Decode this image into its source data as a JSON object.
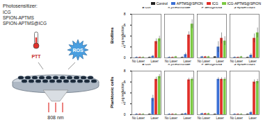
{
  "diagram": {
    "photosensitizer": {
      "title": "Photosensitizer:",
      "items": [
        "ICG",
        "SPION-APTMS",
        "SPION-APTMS@ICG"
      ]
    },
    "laser": "808 nm",
    "effects": [
      "PTT",
      "ROS"
    ]
  },
  "chart_data": [
    {
      "type": "bar",
      "title": "Biofilms",
      "y_label": "Log reduction",
      "categories": [
        "E coli",
        "K pneumoniae",
        "P aeruginosa",
        "S epidermidis"
      ],
      "groups": [
        "No Laser",
        "Laser"
      ],
      "ylim": [
        0,
        8
      ],
      "yticks": [
        0,
        2,
        4,
        6,
        8
      ],
      "legend": "top-right",
      "series": [
        {
          "name": "Control",
          "color": "#222222",
          "values": [
            [
              0,
              0.1
            ],
            [
              0,
              0.1
            ],
            [
              0,
              0.2
            ],
            [
              0,
              0.1
            ]
          ],
          "errors": [
            [
              0,
              0.1
            ],
            [
              0,
              0.1
            ],
            [
              0,
              0.1
            ],
            [
              0,
              0.1
            ]
          ]
        },
        {
          "name": "APTMS@SPION",
          "color": "#3b6fd4",
          "values": [
            [
              0.1,
              0.3
            ],
            [
              0.1,
              0.6
            ],
            [
              0.2,
              2.0
            ],
            [
              0.1,
              0.5
            ]
          ],
          "errors": [
            [
              0.1,
              0.2
            ],
            [
              0.1,
              0.3
            ],
            [
              0.1,
              1.0
            ],
            [
              0.1,
              0.3
            ]
          ]
        },
        {
          "name": "ICG",
          "color": "#e0302a",
          "values": [
            [
              0.1,
              3.0
            ],
            [
              0.1,
              4.2
            ],
            [
              0.2,
              3.6
            ],
            [
              0.1,
              3.6
            ]
          ],
          "errors": [
            [
              0.1,
              0.5
            ],
            [
              0.1,
              0.6
            ],
            [
              0.1,
              1.0
            ],
            [
              0.1,
              0.8
            ]
          ]
        },
        {
          "name": "ICG-APTMS@SPION",
          "color": "#7ac943",
          "values": [
            [
              0.1,
              3.5
            ],
            [
              0.2,
              6.2
            ],
            [
              0.2,
              3.1
            ],
            [
              0.2,
              4.6
            ]
          ],
          "errors": [
            [
              0.1,
              0.5
            ],
            [
              0.1,
              0.8
            ],
            [
              0.1,
              0.8
            ],
            [
              0.1,
              0.9
            ]
          ]
        }
      ]
    },
    {
      "type": "bar",
      "title": "Planktonic cells",
      "y_label": "Log reduction",
      "categories": [
        "E coli",
        "K pneumoniae",
        "P aeruginosa",
        "S epidermidis"
      ],
      "groups": [
        "No Laser",
        "Laser"
      ],
      "ylim": [
        0,
        8
      ],
      "yticks": [
        0,
        2,
        4,
        6,
        8
      ],
      "series": [
        {
          "name": "Control",
          "color": "#222222",
          "values": [
            [
              0,
              0.1
            ],
            [
              0,
              0.1
            ],
            [
              0,
              0.1
            ],
            [
              0,
              0.1
            ]
          ],
          "errors": [
            [
              0,
              0.1
            ],
            [
              0,
              0.1
            ],
            [
              0,
              0.1
            ],
            [
              0,
              0.1
            ]
          ]
        },
        {
          "name": "APTMS@SPION",
          "color": "#3b6fd4",
          "values": [
            [
              0.1,
              3.0
            ],
            [
              0.1,
              0.2
            ],
            [
              0.2,
              6.5
            ],
            [
              0.1,
              0.4
            ]
          ],
          "errors": [
            [
              0.1,
              0.6
            ],
            [
              0.1,
              0.1
            ],
            [
              0.1,
              0.3
            ],
            [
              0.1,
              0.2
            ]
          ]
        },
        {
          "name": "ICG",
          "color": "#e0302a",
          "values": [
            [
              0.1,
              6.5
            ],
            [
              0.1,
              6.4
            ],
            [
              0.2,
              6.5
            ],
            [
              0.1,
              6.0
            ]
          ],
          "errors": [
            [
              0.1,
              0.4
            ],
            [
              0.1,
              0.3
            ],
            [
              0.1,
              0.3
            ],
            [
              0.1,
              0.4
            ]
          ]
        },
        {
          "name": "ICG-APTMS@SPION",
          "color": "#7ac943",
          "values": [
            [
              0.1,
              7.0
            ],
            [
              0.1,
              6.5
            ],
            [
              0.2,
              6.5
            ],
            [
              0.1,
              6.1
            ]
          ],
          "errors": [
            [
              0.1,
              0.4
            ],
            [
              0.1,
              0.3
            ],
            [
              0.1,
              0.3
            ],
            [
              0.1,
              0.4
            ]
          ]
        }
      ]
    }
  ]
}
